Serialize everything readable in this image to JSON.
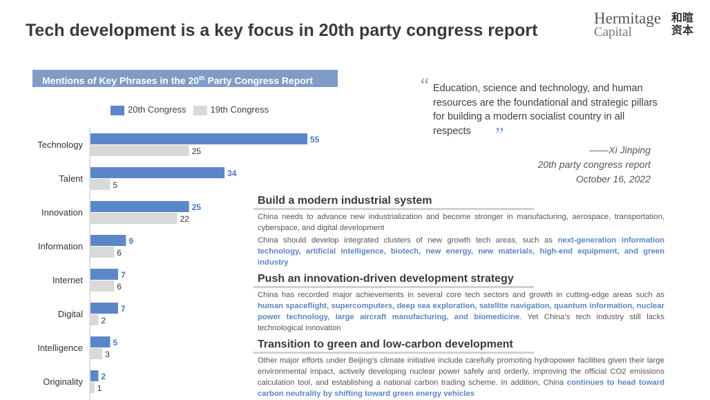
{
  "title": "Tech development is a key focus in 20th party congress report",
  "logo": {
    "line1": "Hermitage",
    "line2": "Capital",
    "cn": "和暄资本"
  },
  "chart_data": {
    "type": "bar",
    "orientation": "horizontal",
    "title": "Mentions of Key Phrases in the 20th Party Congress Report",
    "title_parts": {
      "pre": "Mentions of Key Phrases in the 20",
      "sup": "th",
      "post": " Party Congress Report"
    },
    "categories": [
      "Technology",
      "Talent",
      "Innovation",
      "Information",
      "Internet",
      "Digital",
      "Intelligence",
      "Originality"
    ],
    "series": [
      {
        "name": "20th Congress",
        "color": "#5b87c8",
        "values": [
          55,
          34,
          25,
          9,
          7,
          7,
          5,
          2
        ]
      },
      {
        "name": "19th Congress",
        "color": "#d9d9d9",
        "values": [
          25,
          5,
          22,
          6,
          6,
          2,
          3,
          1
        ]
      }
    ],
    "legend": "top",
    "grid": false,
    "xlim": [
      0,
      55
    ]
  },
  "quote": {
    "text": "Education, science and technology, and human resources are the foundational and strategic pillars for building a modern socialist country in all respects",
    "open": "“",
    "close": "”",
    "author": "——Xi Jinping",
    "source": "20th party congress report",
    "date": "October 16, 2022"
  },
  "sections": [
    {
      "heading": "Build a modern industrial system",
      "paragraphs": [
        [
          {
            "t": "China needs to advance new industrialization and become stronger in manufacturing, aerospace, transportation, cyberspace, and digital development"
          }
        ],
        [
          {
            "t": "China should develop integrated clusters of new growth tech areas, such as "
          },
          {
            "t": "next-generation information technology, artificial intelligence, biotech, new energy, new materials, high-end equipment, and green industry",
            "hl": true
          }
        ]
      ]
    },
    {
      "heading": "Push an innovation-driven development strategy",
      "paragraphs": [
        [
          {
            "t": "China has recorded major achievements in several core tech sectors and growth in cutting-edge areas such as "
          },
          {
            "t": "human spaceflight, supercomputers, deep sea exploration, satellite navigation, quantum information, nuclear power technology, large aircraft manufacturing, and biomedicine",
            "hl": true
          },
          {
            "t": ". Yet China’s tech industry still lacks technological innovation"
          }
        ]
      ]
    },
    {
      "heading": "Transition to green and low-carbon development",
      "paragraphs": [
        [
          {
            "t": "Other major efforts under Beijing’s climate initiative include carefully promoting hydropower facilities given their large environmental impact, actively developing nuclear power safely and orderly, improving the official CO2 emissions calculation tool, and establishing a national carbon trading scheme. In addition, China "
          },
          {
            "t": "continues to head toward carbon neutrality by shifting toward green energy vehicles",
            "hl": true
          }
        ]
      ]
    }
  ]
}
